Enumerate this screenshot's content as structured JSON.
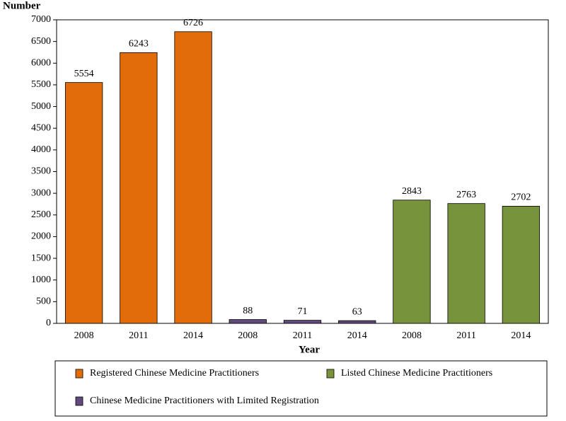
{
  "chart_data": {
    "type": "bar",
    "y_axis_label": "Number",
    "x_axis_label": "Year",
    "categories": [
      "2008",
      "2011",
      "2014",
      "2008",
      "2011",
      "2014",
      "2008",
      "2011",
      "2014"
    ],
    "series": [
      {
        "name": "Registered Chinese Medicine Practitioners",
        "color": "#e36c0a",
        "values": [
          5554,
          6243,
          6726,
          null,
          null,
          null,
          null,
          null,
          null
        ]
      },
      {
        "name": "Chinese Medicine Practitioners with Limited Registration",
        "color": "#604a7b",
        "values": [
          null,
          null,
          null,
          88,
          71,
          63,
          null,
          null,
          null
        ]
      },
      {
        "name": "Listed Chinese Medicine Practitioners",
        "color": "#77933c",
        "values": [
          null,
          null,
          null,
          null,
          null,
          null,
          2843,
          2763,
          2702
        ]
      }
    ],
    "ylim": [
      0,
      7000
    ],
    "yticks": [
      0,
      500,
      1000,
      1500,
      2000,
      2500,
      3000,
      3500,
      4000,
      4500,
      5000,
      5500,
      6000,
      6500,
      7000
    ],
    "grid": false
  }
}
